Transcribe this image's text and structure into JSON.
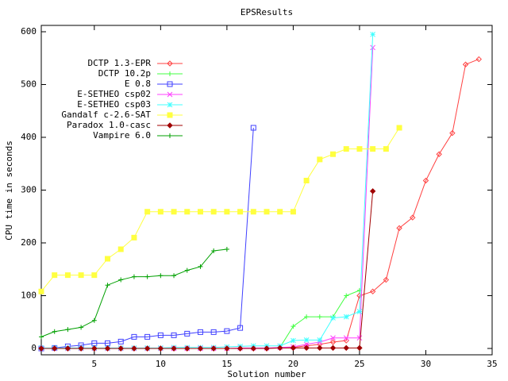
{
  "chart_data": {
    "type": "line",
    "title": "EPSResults",
    "x_label": "Solution number",
    "y_label": "CPU time in seconds",
    "xlim": [
      1,
      35
    ],
    "xticks": [
      5,
      10,
      15,
      20,
      25,
      30,
      35
    ],
    "ylim": [
      -12,
      612
    ],
    "yticks": [
      0,
      100,
      200,
      300,
      400,
      500,
      600
    ],
    "grid": false,
    "legend": "top-left",
    "series": [
      {
        "name": "DCTP 1.3-EPR",
        "color": "#ff4040",
        "marker": "diamond",
        "x": [
          1,
          2,
          3,
          4,
          5,
          6,
          7,
          8,
          9,
          10,
          11,
          12,
          13,
          14,
          15,
          16,
          17,
          18,
          19,
          20,
          21,
          22,
          23,
          24,
          25,
          26,
          27,
          28,
          29,
          30,
          31,
          32,
          33,
          34
        ],
        "values": [
          0,
          0,
          0,
          0,
          0,
          0,
          0,
          0,
          0,
          0,
          0,
          0,
          0,
          0,
          0,
          0,
          0,
          0,
          1,
          2,
          5,
          8,
          12,
          15,
          100,
          108,
          130,
          228,
          248,
          318,
          368,
          408,
          538,
          548
        ]
      },
      {
        "name": "DCTP 10.2p",
        "color": "#40ff40",
        "marker": "plus",
        "x": [
          1,
          2,
          3,
          4,
          5,
          6,
          7,
          8,
          9,
          10,
          11,
          12,
          13,
          14,
          15,
          16,
          17,
          18,
          19,
          20,
          21,
          22,
          23,
          24,
          25
        ],
        "values": [
          0,
          0,
          0,
          0,
          0,
          0,
          0,
          0,
          0,
          0,
          0,
          0,
          0,
          0,
          0,
          0,
          0,
          0,
          2,
          42,
          60,
          60,
          60,
          100,
          110
        ]
      },
      {
        "name": "E 0.8",
        "color": "#4040ff",
        "marker": "square",
        "x": [
          1,
          2,
          3,
          4,
          5,
          6,
          7,
          8,
          9,
          10,
          11,
          12,
          13,
          14,
          15,
          16,
          17
        ],
        "values": [
          0,
          1,
          4,
          6,
          10,
          10,
          13,
          22,
          22,
          25,
          25,
          28,
          31,
          31,
          33,
          39,
          418
        ]
      },
      {
        "name": "E-SETHEO csp02",
        "color": "#ff40ff",
        "marker": "cross",
        "x": [
          1,
          2,
          3,
          4,
          5,
          6,
          7,
          8,
          9,
          10,
          11,
          12,
          13,
          14,
          15,
          16,
          17,
          18,
          19,
          20,
          21,
          22,
          23,
          24,
          25,
          26
        ],
        "values": [
          0,
          0,
          0,
          0,
          0,
          0,
          0,
          0,
          0,
          0,
          0,
          0,
          0,
          0,
          0,
          1,
          1,
          1,
          2,
          3,
          8,
          12,
          20,
          20,
          20,
          570
        ]
      },
      {
        "name": "E-SETHEO csp03",
        "color": "#40ffff",
        "marker": "star",
        "x": [
          1,
          2,
          3,
          4,
          5,
          6,
          7,
          8,
          9,
          10,
          11,
          12,
          13,
          14,
          15,
          16,
          17,
          18,
          19,
          20,
          21,
          22,
          23,
          24,
          25,
          26
        ],
        "values": [
          1,
          1,
          1,
          1,
          1,
          1,
          1,
          1,
          1,
          1,
          2,
          2,
          2,
          2,
          3,
          4,
          5,
          5,
          5,
          15,
          16,
          16,
          58,
          60,
          70,
          595
        ]
      },
      {
        "name": "Gandalf c-2.6-SAT",
        "color": "#ffff40",
        "marker": "box",
        "x": [
          1,
          2,
          3,
          4,
          5,
          6,
          7,
          8,
          9,
          10,
          11,
          12,
          13,
          14,
          15,
          16,
          17,
          18,
          19,
          20,
          21,
          22,
          23,
          24,
          25,
          26,
          27,
          28
        ],
        "values": [
          108,
          139,
          139,
          139,
          139,
          170,
          188,
          210,
          259,
          259,
          259,
          259,
          259,
          259,
          259,
          259,
          259,
          259,
          259,
          259,
          318,
          358,
          368,
          378,
          378,
          378,
          378,
          418
        ]
      },
      {
        "name": "Paradox 1.0-casc",
        "color": "#a00000",
        "marker": "fdiamond",
        "x": [
          1,
          2,
          3,
          4,
          5,
          6,
          7,
          8,
          9,
          10,
          11,
          12,
          13,
          14,
          15,
          16,
          17,
          18,
          19,
          20,
          21,
          22,
          23,
          24,
          25,
          26
        ],
        "values": [
          0,
          0,
          0,
          0,
          0,
          0,
          0,
          0,
          0,
          0,
          0,
          0,
          0,
          0,
          0,
          0,
          0,
          0,
          1,
          1,
          1,
          1,
          1,
          1,
          1,
          298
        ]
      },
      {
        "name": "Vampire 6.0",
        "color": "#00a000",
        "marker": "plus",
        "x": [
          1,
          2,
          3,
          4,
          5,
          6,
          7,
          8,
          9,
          10,
          11,
          12,
          13,
          14,
          15
        ],
        "values": [
          22,
          32,
          36,
          40,
          53,
          120,
          130,
          136,
          136,
          138,
          138,
          148,
          155,
          185,
          188
        ]
      }
    ]
  }
}
